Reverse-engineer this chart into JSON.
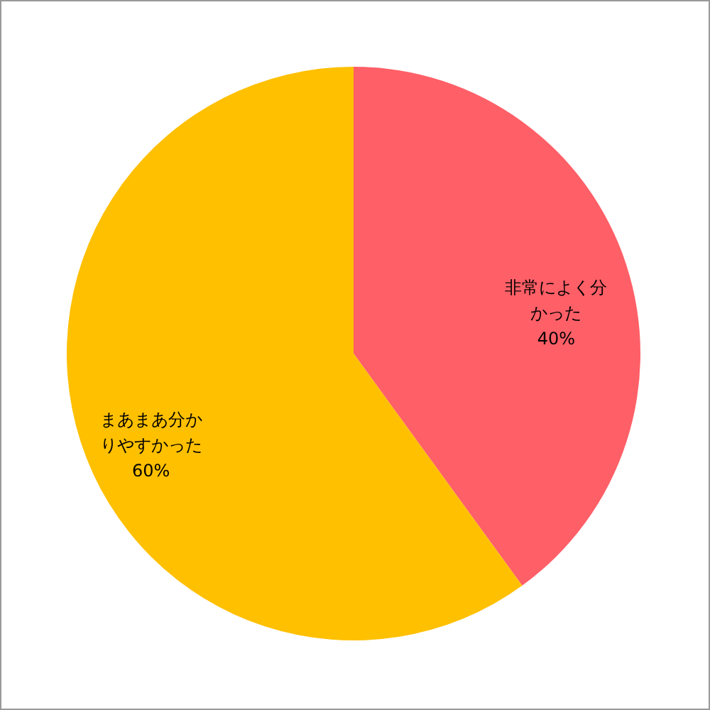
{
  "chart_data": {
    "type": "pie",
    "categories": [
      "非常によく分かった",
      "まあまあ分かりやすかった"
    ],
    "values": [
      40,
      60
    ],
    "value_labels": [
      "40%",
      "60%"
    ],
    "colors": [
      "#ff5f67",
      "#ffc000"
    ]
  }
}
